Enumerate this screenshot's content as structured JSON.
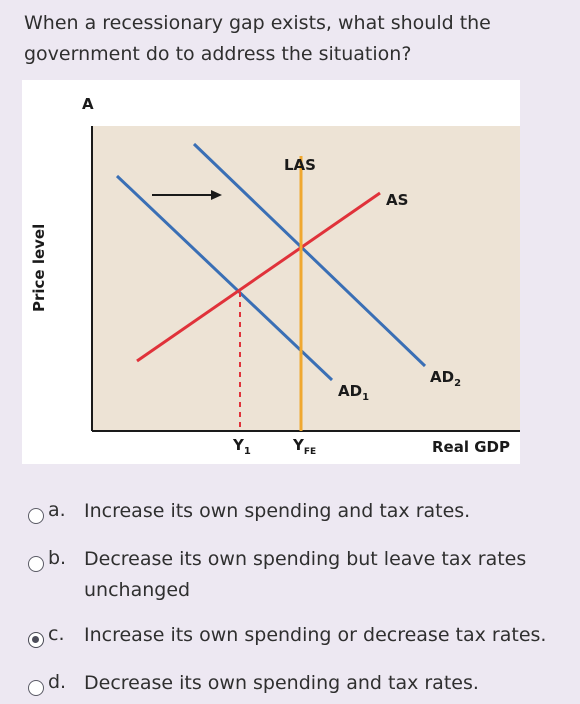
{
  "question": {
    "text": "When a recessionary gap exists, what should the government do to address the situation?"
  },
  "figure": {
    "panel_label": "A",
    "y_axis_label": "Price level",
    "x_axis_label": "Real GDP",
    "curve_labels": {
      "las": "LAS",
      "as": "AS",
      "ad1_main": "AD",
      "ad1_sub": "1",
      "ad2_main": "AD",
      "ad2_sub": "2"
    },
    "tick_labels": {
      "y1_main": "Y",
      "y1_sub": "1",
      "yfe_main": "Y",
      "yfe_sub": "FE"
    },
    "colors": {
      "plot_bg": "#ede3d5",
      "ad_line": "#3a6fb5",
      "as_line": "#e0323a",
      "las_line": "#f0a830",
      "arrow": "#1a1a1a"
    }
  },
  "options": [
    {
      "letter": "a.",
      "text": "Increase its own spending and tax rates.",
      "selected": false
    },
    {
      "letter": "b.",
      "text": "Decrease its own spending but leave tax rates unchanged",
      "selected": false
    },
    {
      "letter": "c.",
      "text": "Increase its own spending or decrease tax rates.",
      "selected": true
    },
    {
      "letter": "d.",
      "text": "Decrease its own spending and tax rates.",
      "selected": false
    }
  ]
}
